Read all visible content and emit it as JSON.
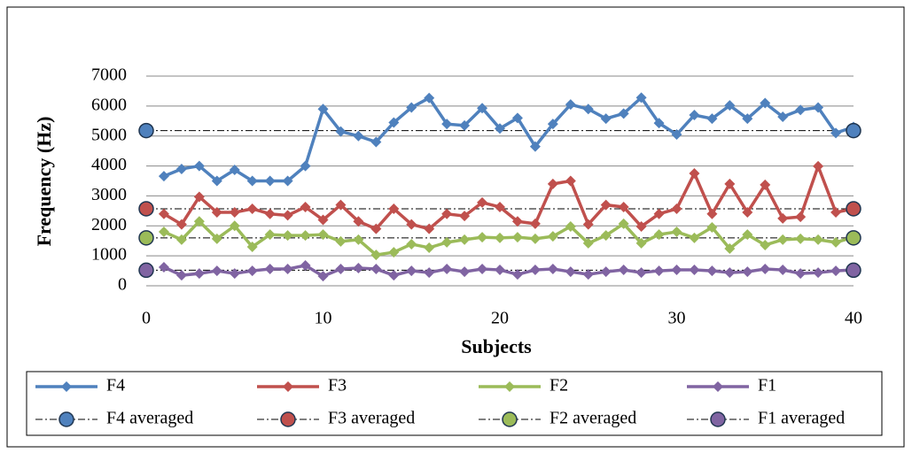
{
  "chart_data": {
    "type": "line",
    "xlabel": "Subjects",
    "ylabel": "Frequency (Hz)",
    "x": [
      1,
      2,
      3,
      4,
      5,
      6,
      7,
      8,
      9,
      10,
      11,
      12,
      13,
      14,
      15,
      16,
      17,
      18,
      19,
      20,
      21,
      22,
      23,
      24,
      25,
      26,
      27,
      28,
      29,
      30,
      31,
      32,
      33,
      34,
      35,
      36,
      37,
      38,
      39,
      40
    ],
    "series": [
      {
        "name": "F4",
        "color": "#4f81bd",
        "values": [
          3660,
          3900,
          4000,
          3500,
          3870,
          3500,
          3500,
          3500,
          4000,
          5900,
          5150,
          5000,
          4800,
          5450,
          5950,
          6270,
          5400,
          5350,
          5930,
          5250,
          5600,
          4650,
          5400,
          6050,
          5900,
          5580,
          5750,
          6280,
          5430,
          5050,
          5700,
          5580,
          6020,
          5580,
          6100,
          5640,
          5870,
          5950,
          5100,
          5300
        ]
      },
      {
        "name": "F3",
        "color": "#c0504d",
        "values": [
          2400,
          2050,
          2970,
          2450,
          2450,
          2570,
          2400,
          2350,
          2630,
          2200,
          2700,
          2150,
          1900,
          2570,
          2050,
          1900,
          2400,
          2330,
          2780,
          2630,
          2150,
          2070,
          3400,
          3500,
          2050,
          2700,
          2630,
          1980,
          2400,
          2570,
          3750,
          2400,
          3400,
          2450,
          3370,
          2250,
          2300,
          3990,
          2450,
          2570
        ]
      },
      {
        "name": "F2",
        "color": "#9bbb59",
        "values": [
          1800,
          1540,
          2150,
          1570,
          2000,
          1300,
          1710,
          1680,
          1680,
          1710,
          1480,
          1540,
          1030,
          1120,
          1390,
          1270,
          1450,
          1540,
          1620,
          1600,
          1620,
          1570,
          1650,
          1980,
          1420,
          1680,
          2070,
          1420,
          1710,
          1800,
          1600,
          1950,
          1240,
          1710,
          1360,
          1540,
          1570,
          1540,
          1450,
          1620
        ]
      },
      {
        "name": "F1",
        "color": "#8064a2",
        "values": [
          620,
          350,
          410,
          500,
          410,
          500,
          560,
          560,
          680,
          320,
          560,
          590,
          560,
          350,
          500,
          440,
          560,
          470,
          560,
          530,
          380,
          530,
          560,
          470,
          380,
          470,
          530,
          440,
          500,
          530,
          530,
          500,
          440,
          470,
          560,
          530,
          410,
          440,
          500,
          530
        ]
      }
    ],
    "averages": [
      {
        "name": "F4 averaged",
        "color": "#4f81bd",
        "value": 5180
      },
      {
        "name": "F3 averaged",
        "color": "#c0504d",
        "value": 2570
      },
      {
        "name": "F2 averaged",
        "color": "#9bbb59",
        "value": 1600
      },
      {
        "name": "F1 averaged",
        "color": "#8064a2",
        "value": 520
      }
    ],
    "xlim": [
      0,
      40
    ],
    "xticks": [
      0,
      10,
      20,
      30,
      40
    ],
    "ylim": [
      0,
      7000
    ],
    "yticks": [
      0,
      1000,
      2000,
      3000,
      4000,
      5000,
      6000,
      7000
    ],
    "grid": true
  }
}
